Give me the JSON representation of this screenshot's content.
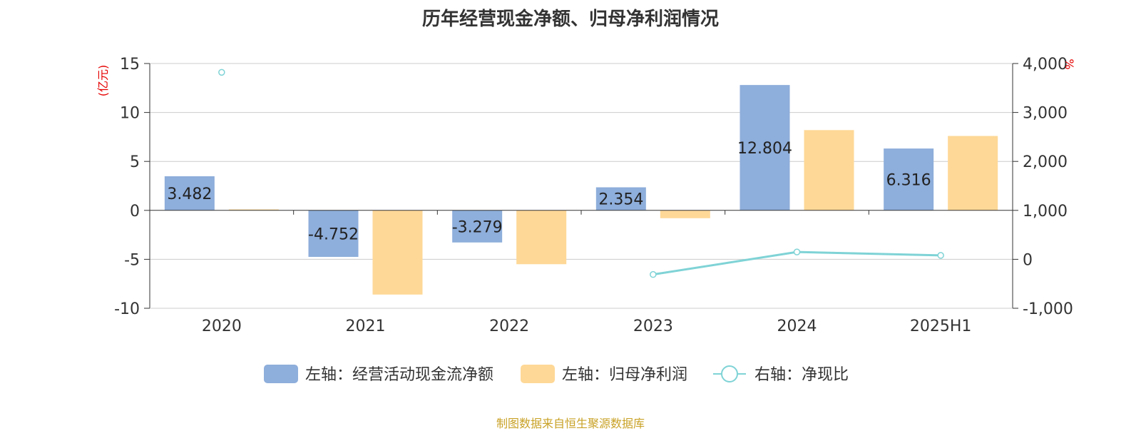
{
  "title": "历年经营现金净额、归母净利润情况",
  "source": "制图数据来自恒生聚源数据库",
  "chart_data": {
    "type": "bar",
    "categories": [
      "2020",
      "2021",
      "2022",
      "2023",
      "2024",
      "2025H1"
    ],
    "left_axis": {
      "unit": "(亿元)",
      "ylim": [
        -10,
        15
      ],
      "ticks": [
        -10,
        -5,
        0,
        5,
        10,
        15
      ]
    },
    "right_axis": {
      "unit": "%",
      "ylim": [
        -1000,
        4000
      ],
      "ticks": [
        "-1,000",
        "0",
        "1,000",
        "2,000",
        "3,000",
        "4,000"
      ]
    },
    "series": [
      {
        "name": "左轴：经营活动现金流净额",
        "axis": "left",
        "type": "bar",
        "color": "#8eaedb",
        "values": [
          3.482,
          -4.752,
          -3.279,
          2.354,
          12.804,
          6.316
        ],
        "labels": [
          "3.482",
          "-4.752",
          "-3.279",
          "2.354",
          "12.804",
          "6.316"
        ]
      },
      {
        "name": "左轴：归母净利润",
        "axis": "left",
        "type": "bar",
        "color": "#fed897",
        "values": [
          0.1,
          -8.6,
          -5.5,
          -0.8,
          8.2,
          7.6
        ]
      },
      {
        "name": "右轴：净现比",
        "axis": "right",
        "type": "line",
        "color": "#7fd3d6",
        "values": [
          3820,
          null,
          null,
          -310,
          150,
          80
        ]
      }
    ],
    "grid": true,
    "legend_position": "bottom"
  }
}
